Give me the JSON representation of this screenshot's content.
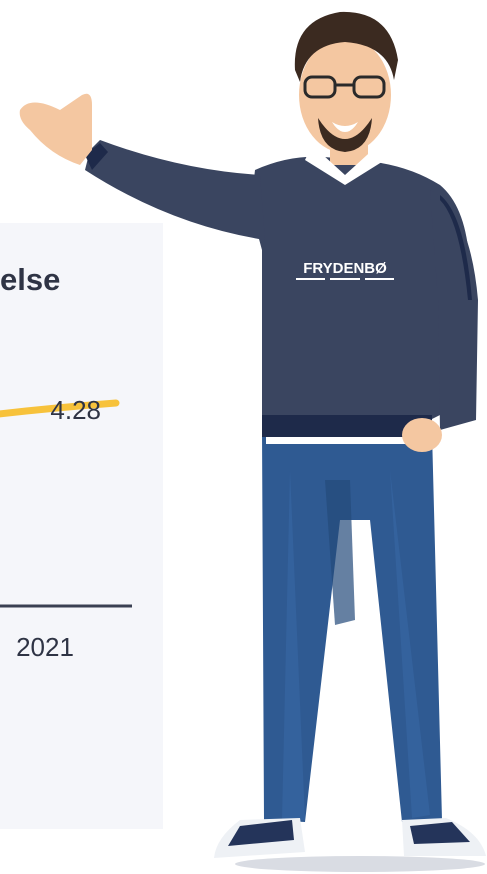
{
  "chart_data": {
    "type": "line",
    "title": "else",
    "categories": [
      "2021"
    ],
    "series": [
      {
        "values": [
          4.28
        ],
        "color": "#f7c23b"
      }
    ],
    "data_labels": [
      "4.28"
    ],
    "axis_color": "#3a4052"
  },
  "illustration": {
    "name": "person-pointing",
    "sweater_logo_text": "FRYDENBØ",
    "colors": {
      "sweater": "#3a4560",
      "sweater_dark": "#1e2a4a",
      "jeans": "#2f5a92",
      "skin": "#f4c7a1",
      "hair": "#3b2a20",
      "shoes": "#eef1f5"
    }
  }
}
